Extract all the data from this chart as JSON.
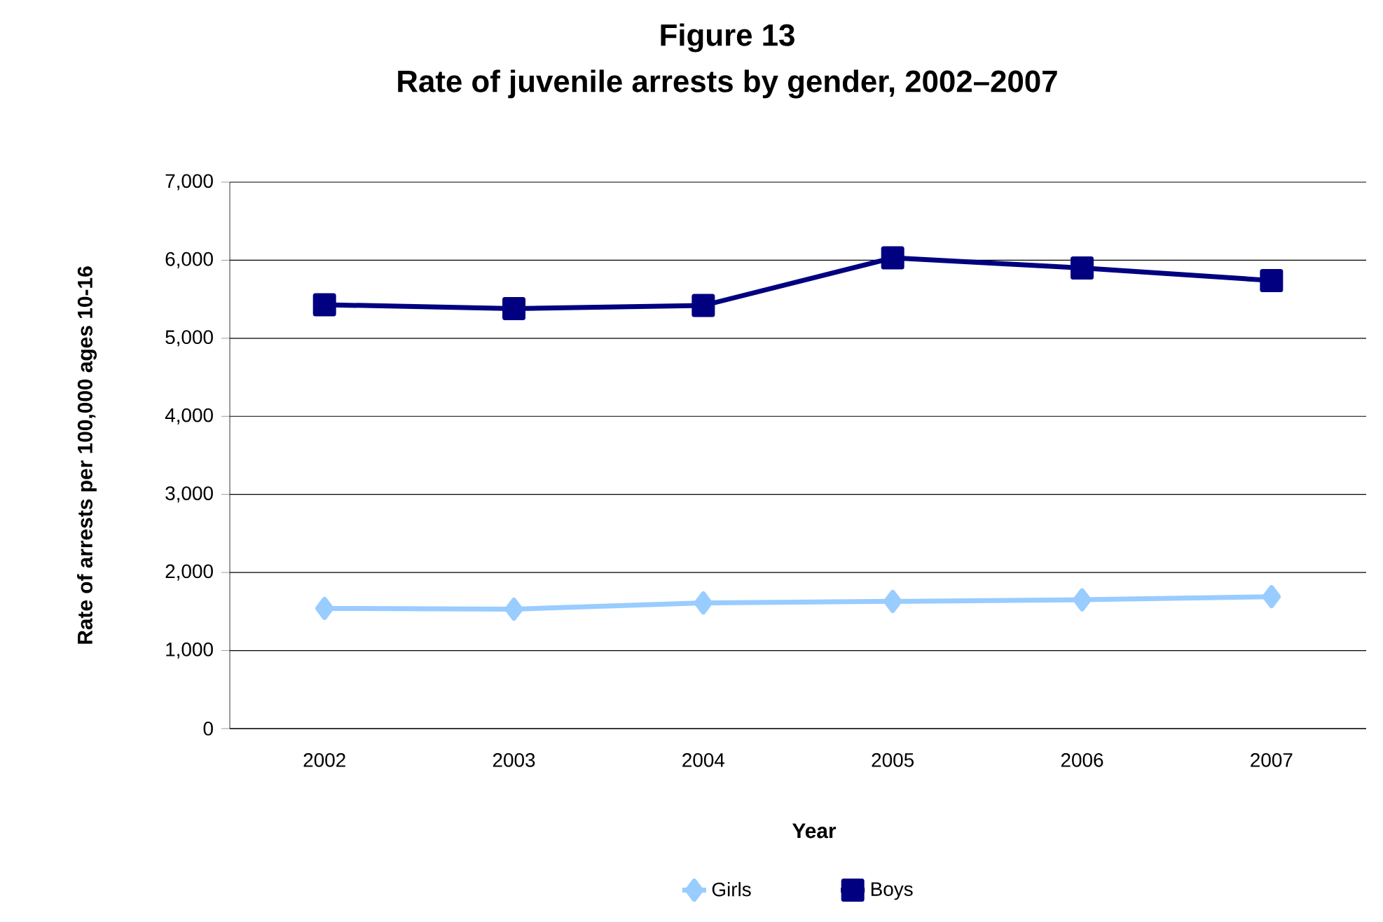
{
  "chart_data": {
    "type": "line",
    "title": "Figure 13",
    "subtitle": "Rate of juvenile arrests by gender, 2002–2007",
    "xlabel": "Year",
    "ylabel": "Rate of arrests per 100,000  ages 10-16",
    "categories": [
      "2002",
      "2003",
      "2004",
      "2005",
      "2006",
      "2007"
    ],
    "series": [
      {
        "name": "Girls",
        "color": "#99ccff",
        "marker": "diamond",
        "values": [
          1540,
          1530,
          1610,
          1630,
          1650,
          1690
        ]
      },
      {
        "name": "Boys",
        "color": "#000080",
        "marker": "square",
        "values": [
          5430,
          5380,
          5420,
          6030,
          5900,
          5740
        ]
      }
    ],
    "ylim": [
      0,
      7000
    ],
    "yticks": [
      {
        "value": 0,
        "label": "0"
      },
      {
        "value": 1000,
        "label": "1,000"
      },
      {
        "value": 2000,
        "label": "2,000"
      },
      {
        "value": 3000,
        "label": "3,000"
      },
      {
        "value": 4000,
        "label": "4,000"
      },
      {
        "value": 5000,
        "label": "5,000"
      },
      {
        "value": 6000,
        "label": "6,000"
      },
      {
        "value": 7000,
        "label": "7,000"
      }
    ],
    "grid": "y",
    "legend": "bottom",
    "line_style": "solid"
  }
}
